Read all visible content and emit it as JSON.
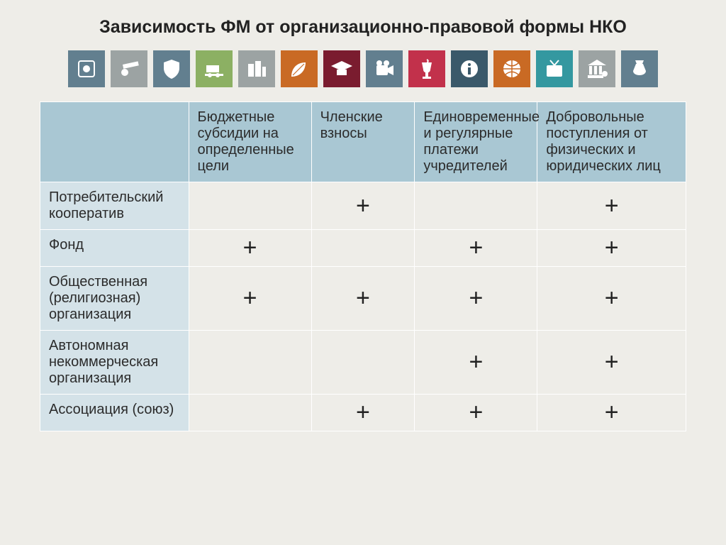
{
  "title": "Зависимость ФМ от организационно-правовой формы НКО",
  "icons": [
    {
      "name": "emblem-icon",
      "bg": "#627f8f"
    },
    {
      "name": "cannon-icon",
      "bg": "#9ca3a3"
    },
    {
      "name": "shield-icon",
      "bg": "#627f8f"
    },
    {
      "name": "cart-icon",
      "bg": "#8cb063"
    },
    {
      "name": "buildings-icon",
      "bg": "#9ca3a3"
    },
    {
      "name": "leaf-icon",
      "bg": "#c96a24"
    },
    {
      "name": "gradcap-icon",
      "bg": "#7a1c2f"
    },
    {
      "name": "camera-icon",
      "bg": "#627f8f"
    },
    {
      "name": "snake-cup-icon",
      "bg": "#c2314b"
    },
    {
      "name": "info-icon",
      "bg": "#3a596a"
    },
    {
      "name": "ball-icon",
      "bg": "#c96a24"
    },
    {
      "name": "tv-icon",
      "bg": "#3498a0"
    },
    {
      "name": "bank-icon",
      "bg": "#9ca3a3"
    },
    {
      "name": "moneybag-icon",
      "bg": "#627f8f"
    }
  ],
  "columns": [
    "",
    "Бюджетные субсидии на определенные цели",
    "Членские взносы",
    "Единовременные и регулярные платежи учредителей",
    "Добровольные поступления от физических и юридических лиц"
  ],
  "rows": [
    {
      "label": "Потребительский кооператив",
      "cells": [
        "",
        "+",
        "",
        "+"
      ]
    },
    {
      "label": "Фонд",
      "cells": [
        "+",
        "",
        "+",
        "+"
      ]
    },
    {
      "label": "Общественная (религиозная) организация",
      "cells": [
        "+",
        "+",
        "+",
        "+"
      ]
    },
    {
      "label": "Автономная некоммерческая организация",
      "cells": [
        "",
        "",
        "+",
        "+"
      ]
    },
    {
      "label": "Ассоциация (союз)",
      "cells": [
        "",
        "+",
        "+",
        "+"
      ]
    }
  ],
  "styling": {
    "page_bg": "#eeede8",
    "header_bg": "#a9c7d3",
    "rowlabel_bg": "#d4e2e8",
    "cell_bg": "#eeede8",
    "border_color": "#ffffff",
    "title_fontsize": 25,
    "header_fontsize": 20,
    "label_fontsize": 20,
    "plus_fontsize": 34,
    "text_color": "#2b2b2b",
    "icon_size": 52,
    "col_widths_pct": [
      23,
      19,
      16,
      19,
      23
    ]
  }
}
